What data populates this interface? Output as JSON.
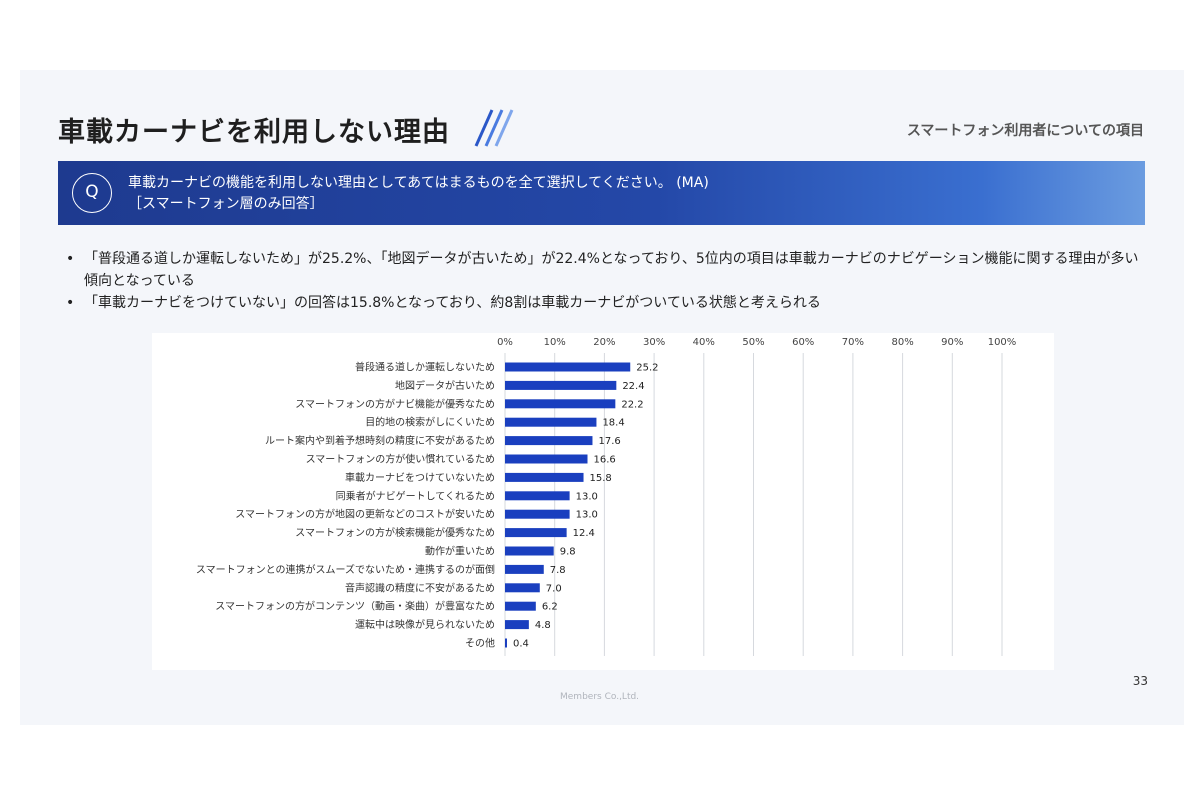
{
  "page": {
    "title": "車載カーナビを利用しない理由",
    "section": "スマートフォン利用者についての項目",
    "question_mark": "Q",
    "question_line1": "車載カーナビの機能を利用しない理由としてあてはまるものを全て選択してください。 (MA)",
    "question_line2": "［スマートフォン層のみ回答］",
    "bullets": [
      "「普段通る道しか運転しないため」が25.2%、「地図データが古いため」が22.4%となっており、5位内の項目は車載カーナビのナビゲーション機能に関する理由が多い傾向となっている",
      "「車載カーナビをつけていない」の回答は15.8%となっており、約8割は車載カーナビがついている状態と考えられる"
    ],
    "page_number": "33",
    "footer": "Members Co.,Ltd."
  },
  "colors": {
    "bar": "#1a3fbf",
    "header_start": "#1e3a8f",
    "header_end": "#6b9ce0",
    "grid": "#d6d9de"
  },
  "chart_data": {
    "type": "bar",
    "orientation": "horizontal",
    "xlim": [
      0,
      100
    ],
    "x_ticks": [
      "0%",
      "10%",
      "20%",
      "30%",
      "40%",
      "50%",
      "60%",
      "70%",
      "80%",
      "90%",
      "100%"
    ],
    "x_tick_values": [
      0,
      10,
      20,
      30,
      40,
      50,
      60,
      70,
      80,
      90,
      100
    ],
    "grid": true,
    "categories": [
      "普段通る道しか運転しないため",
      "地図データが古いため",
      "スマートフォンの方がナビ機能が優秀なため",
      "目的地の検索がしにくいため",
      "ルート案内や到着予想時刻の精度に不安があるため",
      "スマートフォンの方が使い慣れているため",
      "車載カーナビをつけていないため",
      "同乗者がナビゲートしてくれるため",
      "スマートフォンの方が地図の更新などのコストが安いため",
      "スマートフォンの方が検索機能が優秀なため",
      "動作が重いため",
      "スマートフォンとの連携がスムーズでないため・連携するのが面倒",
      "音声認識の精度に不安があるため",
      "スマートフォンの方がコンテンツ（動画・楽曲）が豊富なため",
      "運転中は映像が見られないため",
      "その他"
    ],
    "values": [
      25.2,
      22.4,
      22.2,
      18.4,
      17.6,
      16.6,
      15.8,
      13.0,
      13.0,
      12.4,
      9.8,
      7.8,
      7.0,
      6.2,
      4.8,
      0.4
    ],
    "value_labels": [
      "25.2",
      "22.4",
      "22.2",
      "18.4",
      "17.6",
      "16.6",
      "15.8",
      "13.0",
      "13.0",
      "12.4",
      "9.8",
      "7.8",
      "7.0",
      "6.2",
      "4.8",
      "0.4"
    ]
  }
}
